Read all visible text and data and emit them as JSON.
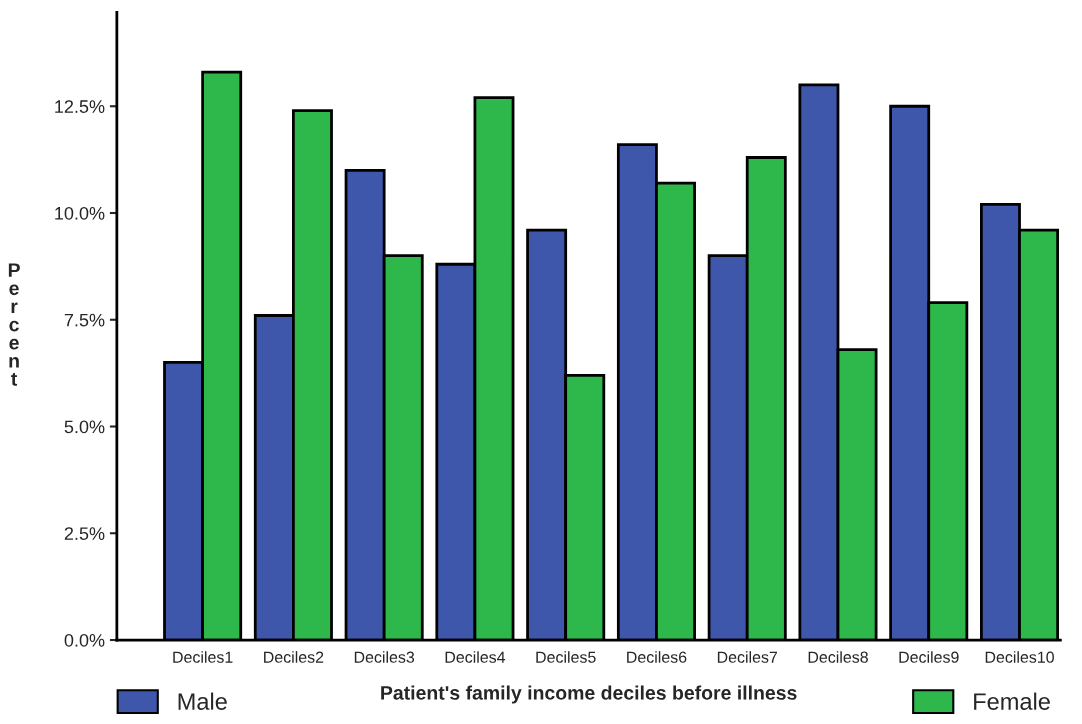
{
  "chart_data": {
    "type": "bar",
    "categories": [
      "Deciles1",
      "Deciles2",
      "Deciles3",
      "Deciles4",
      "Deciles5",
      "Deciles6",
      "Deciles7",
      "Deciles8",
      "Deciles9",
      "Deciles10"
    ],
    "series": [
      {
        "name": "Male",
        "color": "#3f57ab",
        "values": [
          6.5,
          7.6,
          11.0,
          8.8,
          9.6,
          11.6,
          9.0,
          13.0,
          12.5,
          10.2
        ]
      },
      {
        "name": "Female",
        "color": "#2eb84b",
        "values": [
          13.3,
          12.4,
          9.0,
          12.7,
          6.2,
          10.7,
          11.3,
          6.8,
          7.9,
          9.6
        ]
      }
    ],
    "xlabel": "Patient's family income deciles before illness",
    "ylabel": "Percent",
    "ylim": [
      0,
      14.7
    ],
    "yticks": [
      {
        "value": 0,
        "label": "0.0%"
      },
      {
        "value": 2.5,
        "label": "2.5%"
      },
      {
        "value": 5,
        "label": "5.0%"
      },
      {
        "value": 7.5,
        "label": "7.5%"
      },
      {
        "value": 10,
        "label": "10.0%"
      },
      {
        "value": 12.5,
        "label": "12.5%"
      }
    ],
    "legend": "bottom",
    "grid": false
  }
}
